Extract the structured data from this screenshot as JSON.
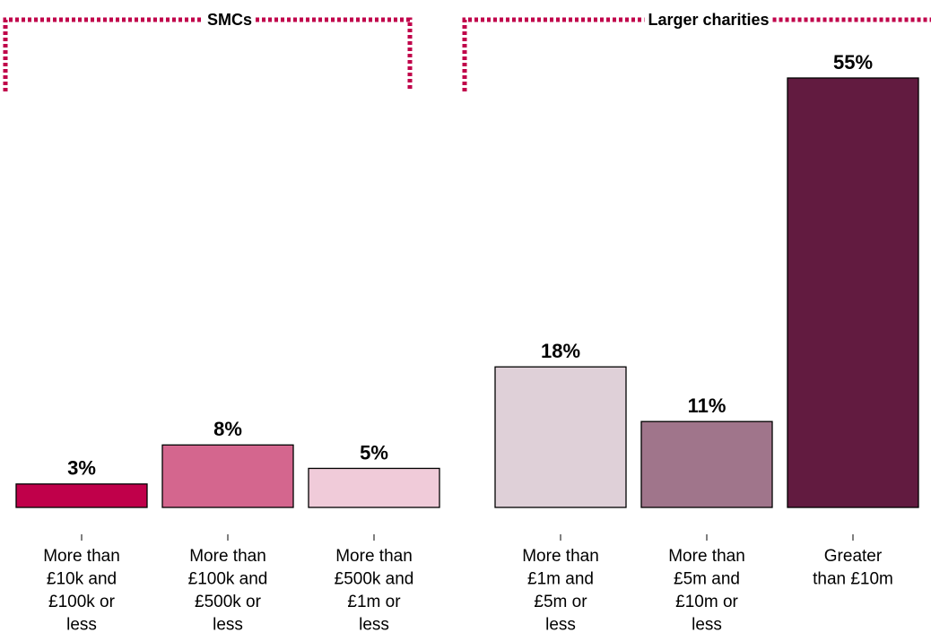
{
  "chart_data": {
    "type": "bar",
    "groups": [
      "SMCs",
      "Larger charities"
    ],
    "categories": [
      [
        "More than",
        "£10k and",
        "£100k or",
        "less"
      ],
      [
        "More than",
        "£100k and",
        "£500k or",
        "less"
      ],
      [
        "More than",
        "£500k and",
        "£1m or",
        "less"
      ],
      [
        "More than",
        "£1m and",
        "£5m or",
        "less"
      ],
      [
        "More than",
        "£5m and",
        "£10m or",
        "less"
      ],
      [
        "Greater",
        "than £10m"
      ]
    ],
    "values": [
      3,
      8,
      5,
      18,
      11,
      55
    ],
    "value_labels": [
      "3%",
      "8%",
      "5%",
      "18%",
      "11%",
      "55%"
    ],
    "colors": [
      "#c0004a",
      "#d4668e",
      "#f0cbd9",
      "#dfd0d8",
      "#a0758b",
      "#621b40"
    ],
    "bracket_color": "#c0004a"
  }
}
